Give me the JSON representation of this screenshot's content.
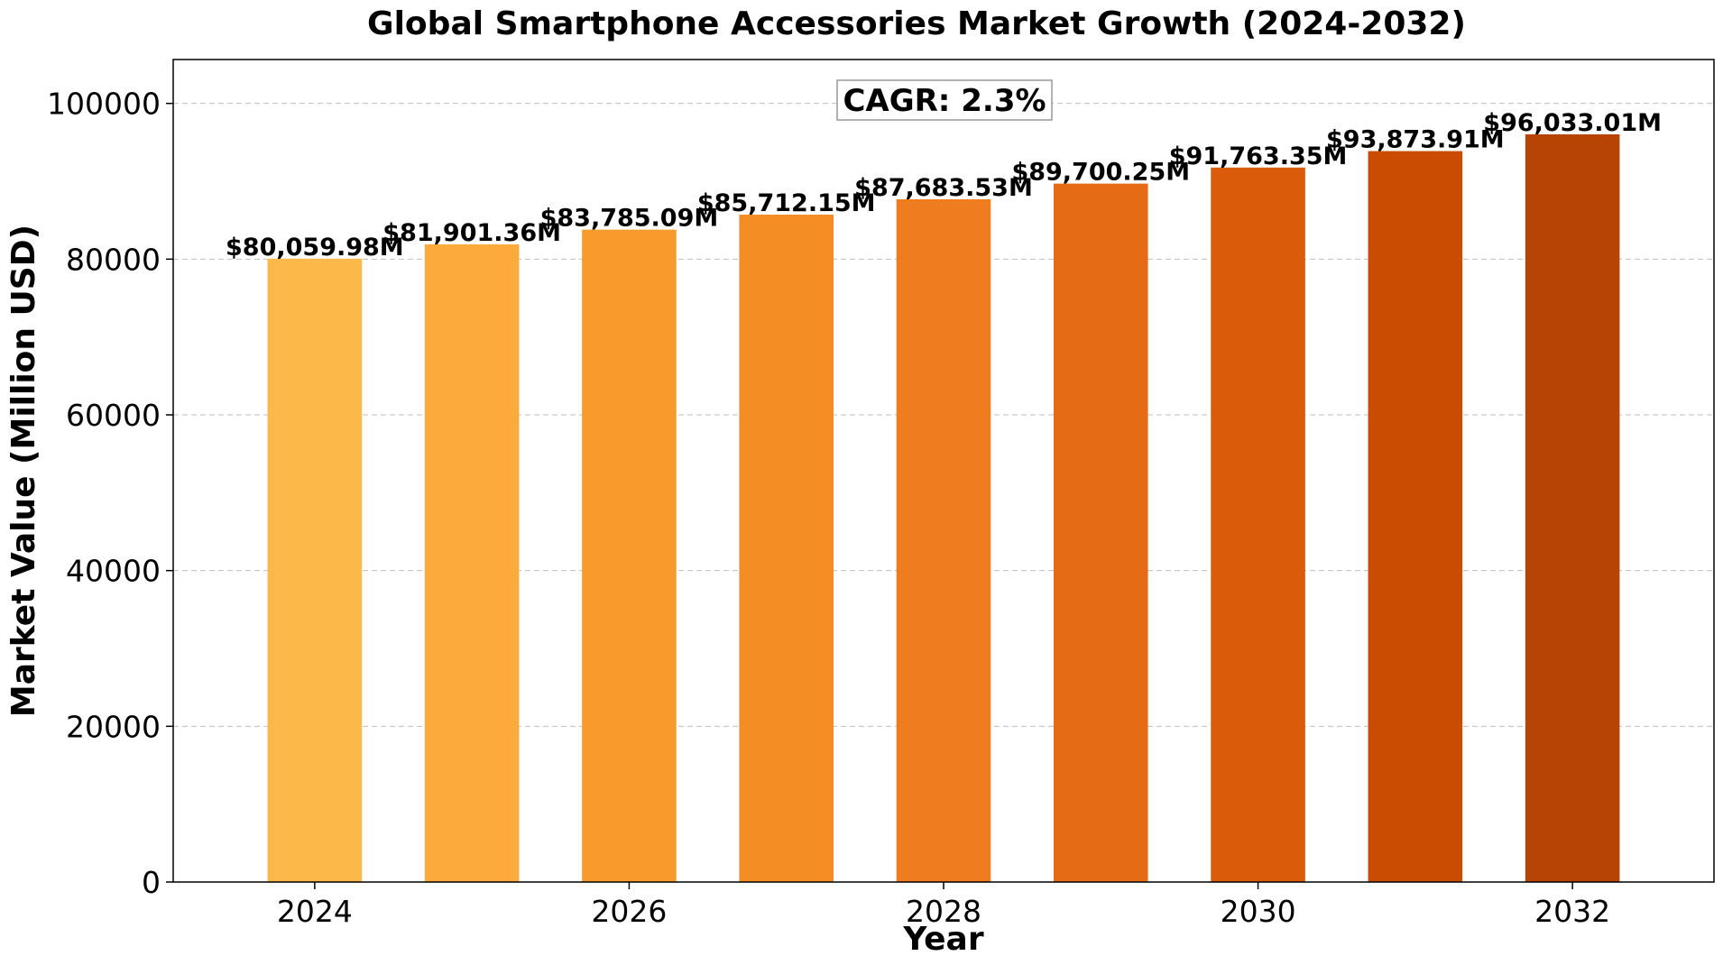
{
  "chart_data": {
    "type": "bar",
    "title": "Global Smartphone Accessories Market Growth (2024-2032)",
    "xlabel": "Year",
    "ylabel": "Market Value (Million USD)",
    "categories": [
      "2024",
      "2025",
      "2026",
      "2027",
      "2028",
      "2029",
      "2030",
      "2031",
      "2032"
    ],
    "values": [
      80059.98,
      81901.36,
      83785.09,
      85712.15,
      87683.53,
      89700.25,
      91763.35,
      93873.91,
      96033.01
    ],
    "value_labels": [
      "$80,059.98M",
      "$81,901.36M",
      "$83,785.09M",
      "$85,712.15M",
      "$87,683.53M",
      "$89,700.25M",
      "$91,763.35M",
      "$93,873.91M",
      "$96,033.01M"
    ],
    "colors": [
      "#fdb84a",
      "#fcaa3c",
      "#f99b2c",
      "#f58d25",
      "#ef7c1e",
      "#e56c15",
      "#da5c0b",
      "#c94c02",
      "#b74305"
    ],
    "x_ticks": [
      "2024",
      "2026",
      "2028",
      "2030",
      "2032"
    ],
    "y_ticks": [
      0,
      20000,
      40000,
      60000,
      80000,
      100000
    ],
    "ylim": [
      0,
      105636.31
    ],
    "grid": "y-dashed",
    "annotation": "CAGR: 2.3%"
  }
}
